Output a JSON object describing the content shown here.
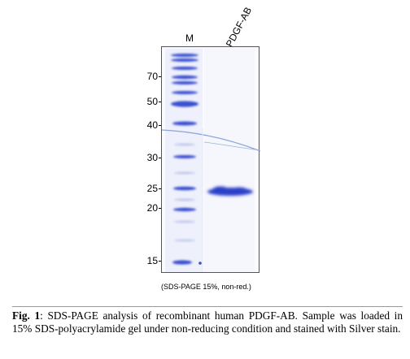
{
  "figure": {
    "lanes": {
      "marker": "M",
      "sample": "hPDGF-AB"
    },
    "molecular_weights": [
      {
        "label": "70",
        "kda": 70
      },
      {
        "label": "50",
        "kda": 50
      },
      {
        "label": "40",
        "kda": 40
      },
      {
        "label": "30",
        "kda": 30
      },
      {
        "label": "25",
        "kda": 25
      },
      {
        "label": "20",
        "kda": 20
      },
      {
        "label": "15",
        "kda": 15
      }
    ],
    "gel_note": "(SDS-PAGE 15%, non-red.)",
    "band_color": "#2a3fc8",
    "caption": {
      "label": "Fig. 1",
      "text": ": SDS-PAGE analysis of recombinant human PDGF-AB. Sample was loaded in 15% SDS-polyacrylamide gel under non-reducing condition and stained with Silver stain."
    }
  }
}
